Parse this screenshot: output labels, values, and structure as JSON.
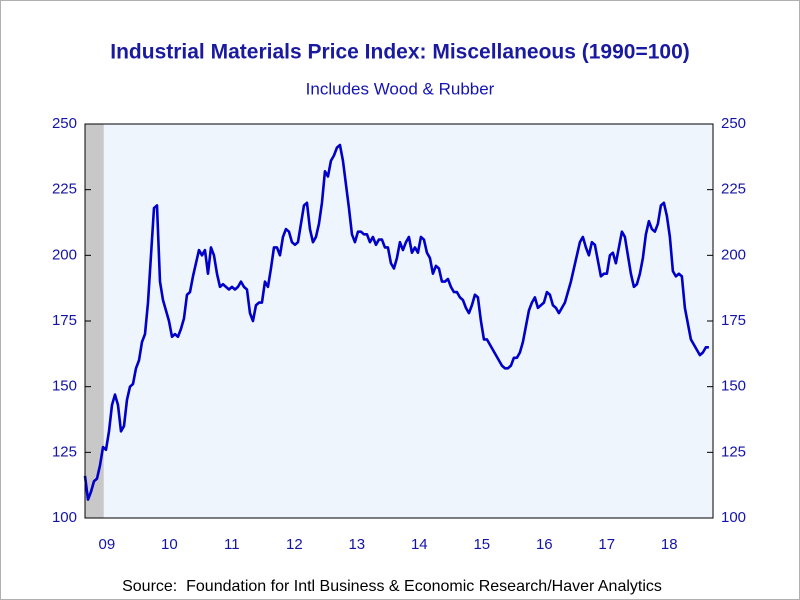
{
  "chart_data": {
    "type": "line",
    "title": "Industrial Materials Price Index: Miscellaneous (1990=100)",
    "subtitle": "Includes Wood & Rubber",
    "source": "Source:  Foundation for Intl Business & Economic Research/Haver Analytics",
    "xlim": [
      2009.15,
      2019.2
    ],
    "ylim": [
      100,
      250
    ],
    "yticks": [
      100,
      125,
      150,
      175,
      200,
      225,
      250
    ],
    "y2lim": [
      100,
      250
    ],
    "y2ticks": [
      100,
      125,
      150,
      175,
      200,
      225,
      250
    ],
    "xticks": [
      {
        "value": 2009.5,
        "label": "09"
      },
      {
        "value": 2010.5,
        "label": "10"
      },
      {
        "value": 2011.5,
        "label": "11"
      },
      {
        "value": 2012.5,
        "label": "12"
      },
      {
        "value": 2013.5,
        "label": "13"
      },
      {
        "value": 2014.5,
        "label": "14"
      },
      {
        "value": 2015.5,
        "label": "15"
      },
      {
        "value": 2016.5,
        "label": "16"
      },
      {
        "value": 2017.5,
        "label": "17"
      },
      {
        "value": 2018.5,
        "label": "18"
      }
    ],
    "recession": {
      "xlim": [
        2009.15,
        2009.45
      ],
      "color": "#c8c8c8"
    },
    "background": "#eef5fd",
    "x": [
      2009.15,
      2009.198,
      2009.246,
      2009.294,
      2009.342,
      2009.39,
      2009.438,
      2009.486,
      2009.534,
      2009.582,
      2009.63,
      2009.678,
      2009.726,
      2009.774,
      2009.822,
      2009.87,
      2009.918,
      2009.966,
      2010.014,
      2010.062,
      2010.11,
      2010.158,
      2010.206,
      2010.254,
      2010.302,
      2010.35,
      2010.398,
      2010.446,
      2010.494,
      2010.542,
      2010.59,
      2010.638,
      2010.686,
      2010.734,
      2010.782,
      2010.83,
      2010.878,
      2010.926,
      2010.974,
      2011.022,
      2011.07,
      2011.118,
      2011.166,
      2011.214,
      2011.262,
      2011.31,
      2011.358,
      2011.406,
      2011.454,
      2011.502,
      2011.55,
      2011.598,
      2011.646,
      2011.694,
      2011.742,
      2011.79,
      2011.838,
      2011.886,
      2011.934,
      2011.982,
      2012.03,
      2012.078,
      2012.126,
      2012.174,
      2012.222,
      2012.27,
      2012.318,
      2012.366,
      2012.414,
      2012.462,
      2012.51,
      2012.558,
      2012.606,
      2012.654,
      2012.702,
      2012.75,
      2012.798,
      2012.846,
      2012.894,
      2012.942,
      2012.99,
      2013.038,
      2013.086,
      2013.134,
      2013.182,
      2013.23,
      2013.278,
      2013.326,
      2013.374,
      2013.422,
      2013.47,
      2013.518,
      2013.566,
      2013.614,
      2013.662,
      2013.71,
      2013.758,
      2013.806,
      2013.854,
      2013.902,
      2013.95,
      2013.998,
      2014.046,
      2014.094,
      2014.142,
      2014.19,
      2014.238,
      2014.286,
      2014.334,
      2014.382,
      2014.43,
      2014.478,
      2014.526,
      2014.574,
      2014.622,
      2014.67,
      2014.718,
      2014.766,
      2014.814,
      2014.862,
      2014.91,
      2014.958,
      2015.006,
      2015.054,
      2015.102,
      2015.15,
      2015.198,
      2015.246,
      2015.294,
      2015.342,
      2015.39,
      2015.438,
      2015.486,
      2015.534,
      2015.582,
      2015.63,
      2015.678,
      2015.726,
      2015.774,
      2015.822,
      2015.87,
      2015.918,
      2015.966,
      2016.014,
      2016.062,
      2016.11,
      2016.158,
      2016.206,
      2016.254,
      2016.302,
      2016.35,
      2016.398,
      2016.446,
      2016.494,
      2016.542,
      2016.59,
      2016.638,
      2016.686,
      2016.734,
      2016.782,
      2016.83,
      2016.878,
      2016.926,
      2016.974,
      2017.022,
      2017.07,
      2017.118,
      2017.166,
      2017.214,
      2017.262,
      2017.31,
      2017.358,
      2017.406,
      2017.454,
      2017.502,
      2017.55,
      2017.598,
      2017.646,
      2017.694,
      2017.742,
      2017.79,
      2017.838,
      2017.886,
      2017.934,
      2017.982,
      2018.03,
      2018.078,
      2018.126,
      2018.174,
      2018.222,
      2018.27,
      2018.318,
      2018.366,
      2018.414,
      2018.462,
      2018.51,
      2018.558,
      2018.606,
      2018.654,
      2018.702,
      2018.75,
      2018.798,
      2018.846,
      2018.894,
      2018.942,
      2018.99,
      2019.038,
      2019.086,
      2019.134
    ],
    "series": [
      {
        "color": "#0000c8",
        "values": [
          116,
          107,
          110,
          114,
          115,
          120,
          127,
          126,
          133,
          143,
          147,
          143,
          133,
          135,
          145,
          150,
          151,
          157,
          160,
          167,
          170,
          182,
          200,
          218,
          219,
          190,
          183,
          179,
          175,
          169,
          170,
          169,
          172,
          176,
          185,
          186,
          192,
          197,
          202,
          200,
          202,
          193,
          203,
          200,
          193,
          188,
          189,
          188,
          187,
          188,
          187,
          188,
          190,
          188,
          187,
          178,
          175,
          181,
          182,
          182,
          190,
          188,
          195,
          203,
          203,
          200,
          207,
          210,
          209,
          205,
          204,
          205,
          212,
          219,
          220,
          210,
          205,
          207,
          212,
          220,
          232,
          230,
          236,
          238,
          241,
          242,
          236,
          227,
          218,
          208,
          205,
          209,
          209,
          208,
          208,
          205,
          207,
          204,
          206,
          206,
          203,
          203,
          197,
          195,
          199,
          205,
          202,
          205,
          207,
          201,
          203,
          201,
          207,
          206,
          201,
          199,
          193,
          196,
          195,
          190,
          190,
          191,
          188,
          186,
          186,
          184,
          183,
          180,
          178,
          181,
          185,
          184,
          175,
          168,
          168,
          166,
          164,
          162,
          160,
          158,
          157,
          157,
          158,
          161,
          161,
          163,
          167,
          173,
          179,
          182,
          184,
          180,
          181,
          182,
          186,
          185,
          181,
          180,
          178,
          180,
          182,
          186,
          190,
          195,
          200,
          205,
          207,
          203,
          200,
          205,
          204,
          198,
          192,
          193,
          193,
          200,
          201,
          197,
          203,
          209,
          207,
          200,
          193,
          188,
          189,
          193,
          199,
          208,
          213,
          210,
          209,
          212,
          219,
          220,
          215,
          207,
          194,
          192,
          193,
          192,
          180,
          174,
          168,
          166,
          164,
          162,
          163,
          165,
          165
        ]
      }
    ]
  }
}
